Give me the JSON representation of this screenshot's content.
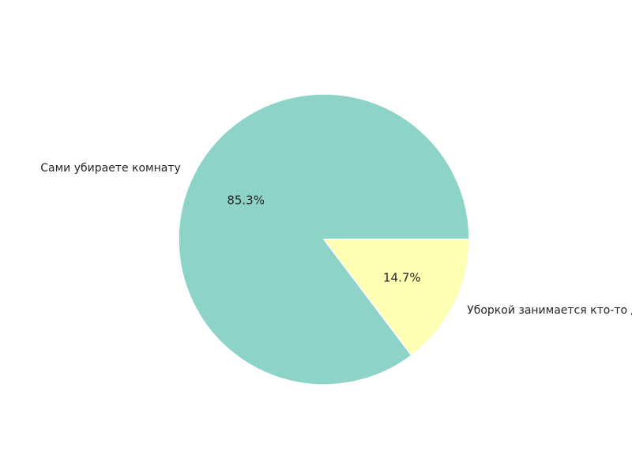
{
  "chart_data": {
    "type": "pie",
    "title": "",
    "labels": [
      "Сами убираете комнату",
      "Уборкой занимается кто-то другой"
    ],
    "values": [
      85.3,
      14.7
    ],
    "percent_labels": [
      "85.3%",
      "14.7%"
    ],
    "colors": [
      "#8ed3c7",
      "#ffffb3"
    ],
    "start_angle_deg": 0,
    "direction": "counterclockwise",
    "legend": "none"
  }
}
